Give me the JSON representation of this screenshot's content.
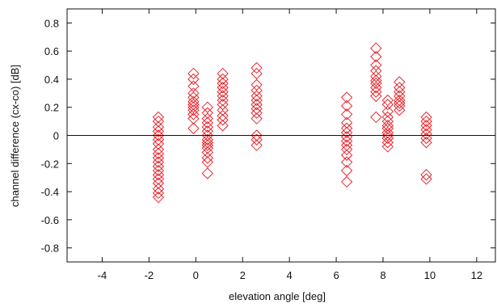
{
  "chart_data": {
    "type": "scatter",
    "title": "",
    "xlabel": "elevation angle [deg]",
    "ylabel": "channel difference (cx-co) [dB]",
    "xlim": [
      -5.5,
      12.8
    ],
    "ylim": [
      -0.9,
      0.9
    ],
    "xticks": [
      -4,
      -2,
      0,
      2,
      4,
      6,
      8,
      10,
      12
    ],
    "yticks": [
      -0.8,
      -0.6,
      -0.4,
      -0.2,
      0,
      0.2,
      0.4,
      0.6,
      0.8
    ],
    "xtick_labels": [
      "-4",
      "-2",
      "0",
      "2",
      "4",
      "6",
      "8",
      "10",
      "12"
    ],
    "ytick_labels": [
      "-0.8",
      "-0.6",
      "-0.4",
      "-0.2",
      "0",
      "0.2",
      "0.4",
      "0.6",
      "0.8"
    ],
    "reference_line_y": 0,
    "grid": false,
    "marker": "diamond",
    "color": "#e8141c",
    "series": [
      {
        "values": [
          [
            -1.6,
            0.13
          ],
          [
            -1.6,
            0.1
          ],
          [
            -1.6,
            0.06
          ],
          [
            -1.6,
            0.03
          ],
          [
            -1.6,
            0.0
          ],
          [
            -1.6,
            -0.03
          ],
          [
            -1.6,
            -0.06
          ],
          [
            -1.6,
            -0.1
          ],
          [
            -1.6,
            -0.13
          ],
          [
            -1.6,
            -0.16
          ],
          [
            -1.6,
            -0.19
          ],
          [
            -1.6,
            -0.22
          ],
          [
            -1.6,
            -0.25
          ],
          [
            -1.6,
            -0.28
          ],
          [
            -1.6,
            -0.31
          ],
          [
            -1.6,
            -0.34
          ],
          [
            -1.6,
            -0.38
          ],
          [
            -1.6,
            -0.41
          ],
          [
            -1.6,
            -0.44
          ],
          [
            -0.1,
            0.44
          ],
          [
            -0.1,
            0.4
          ],
          [
            -0.1,
            0.35
          ],
          [
            -0.1,
            0.3
          ],
          [
            -0.1,
            0.27
          ],
          [
            -0.1,
            0.24
          ],
          [
            -0.1,
            0.22
          ],
          [
            -0.1,
            0.2
          ],
          [
            -0.1,
            0.18
          ],
          [
            -0.1,
            0.15
          ],
          [
            -0.1,
            0.12
          ],
          [
            -0.1,
            0.05
          ],
          [
            0.5,
            0.2
          ],
          [
            0.5,
            0.16
          ],
          [
            0.5,
            0.12
          ],
          [
            0.5,
            0.09
          ],
          [
            0.5,
            0.06
          ],
          [
            0.5,
            0.03
          ],
          [
            0.5,
            0.0
          ],
          [
            0.5,
            -0.03
          ],
          [
            0.5,
            -0.05
          ],
          [
            0.5,
            -0.07
          ],
          [
            0.5,
            -0.09
          ],
          [
            0.5,
            -0.12
          ],
          [
            0.5,
            -0.16
          ],
          [
            0.5,
            -0.19
          ],
          [
            0.5,
            -0.27
          ],
          [
            1.15,
            0.44
          ],
          [
            1.15,
            0.4
          ],
          [
            1.15,
            0.37
          ],
          [
            1.15,
            0.34
          ],
          [
            1.15,
            0.31
          ],
          [
            1.15,
            0.28
          ],
          [
            1.15,
            0.25
          ],
          [
            1.15,
            0.22
          ],
          [
            1.15,
            0.18
          ],
          [
            1.15,
            0.14
          ],
          [
            1.15,
            0.11
          ],
          [
            1.15,
            0.07
          ],
          [
            2.6,
            0.48
          ],
          [
            2.6,
            0.44
          ],
          [
            2.6,
            0.36
          ],
          [
            2.6,
            0.32
          ],
          [
            2.6,
            0.28
          ],
          [
            2.6,
            0.25
          ],
          [
            2.6,
            0.22
          ],
          [
            2.6,
            0.19
          ],
          [
            2.6,
            0.16
          ],
          [
            2.6,
            0.12
          ],
          [
            2.6,
            0.0
          ],
          [
            2.6,
            -0.03
          ],
          [
            2.6,
            -0.07
          ],
          [
            6.45,
            0.27
          ],
          [
            6.45,
            0.21
          ],
          [
            6.45,
            0.15
          ],
          [
            6.45,
            0.09
          ],
          [
            6.45,
            0.05
          ],
          [
            6.45,
            0.02
          ],
          [
            6.45,
            -0.01
          ],
          [
            6.45,
            -0.04
          ],
          [
            6.45,
            -0.07
          ],
          [
            6.45,
            -0.1
          ],
          [
            6.45,
            -0.14
          ],
          [
            6.45,
            -0.19
          ],
          [
            6.45,
            -0.25
          ],
          [
            6.45,
            -0.33
          ],
          [
            7.7,
            0.62
          ],
          [
            7.7,
            0.56
          ],
          [
            7.7,
            0.5
          ],
          [
            7.7,
            0.46
          ],
          [
            7.7,
            0.42
          ],
          [
            7.7,
            0.39
          ],
          [
            7.7,
            0.37
          ],
          [
            7.7,
            0.34
          ],
          [
            7.7,
            0.31
          ],
          [
            7.7,
            0.28
          ],
          [
            7.7,
            0.13
          ],
          [
            8.2,
            0.25
          ],
          [
            8.2,
            0.22
          ],
          [
            8.2,
            0.17
          ],
          [
            8.2,
            0.13
          ],
          [
            8.2,
            0.1
          ],
          [
            8.2,
            0.07
          ],
          [
            8.2,
            0.05
          ],
          [
            8.2,
            0.02
          ],
          [
            8.2,
            0.0
          ],
          [
            8.2,
            -0.02
          ],
          [
            8.2,
            -0.05
          ],
          [
            8.2,
            -0.08
          ],
          [
            8.7,
            0.38
          ],
          [
            8.7,
            0.34
          ],
          [
            8.7,
            0.31
          ],
          [
            8.7,
            0.28
          ],
          [
            8.7,
            0.25
          ],
          [
            8.7,
            0.23
          ],
          [
            8.7,
            0.21
          ],
          [
            8.7,
            0.18
          ],
          [
            9.85,
            0.13
          ],
          [
            9.85,
            0.1
          ],
          [
            9.85,
            0.07
          ],
          [
            9.85,
            0.04
          ],
          [
            9.85,
            0.01
          ],
          [
            9.85,
            -0.02
          ],
          [
            9.85,
            -0.05
          ],
          [
            9.85,
            -0.28
          ],
          [
            9.85,
            -0.31
          ]
        ]
      }
    ]
  }
}
